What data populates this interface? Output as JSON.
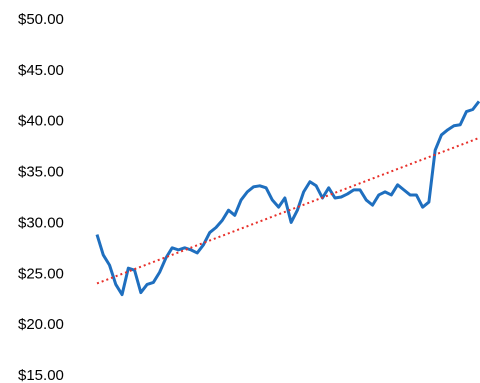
{
  "chart_data": {
    "type": "line",
    "categories": [
      null,
      null,
      null,
      null,
      null,
      null,
      null,
      null,
      null,
      null,
      null,
      null,
      null,
      null,
      null,
      null,
      null,
      null,
      null,
      null,
      null,
      null,
      null,
      null,
      null,
      null,
      null,
      null,
      null,
      null,
      null,
      null,
      null,
      null,
      null,
      null,
      null,
      null,
      null,
      null,
      null,
      null,
      null,
      null,
      null,
      null,
      null,
      null,
      null,
      null,
      null,
      null,
      null,
      null,
      null,
      null,
      null,
      null,
      null,
      null,
      null,
      null
    ],
    "series": [
      {
        "color": "#1f6fbf",
        "values": [
          28.9,
          26.9,
          25.9,
          24.0,
          23.0,
          25.6,
          25.4,
          23.2,
          24.0,
          24.2,
          25.2,
          26.6,
          27.6,
          27.4,
          27.6,
          27.4,
          27.1,
          27.9,
          29.1,
          29.6,
          30.3,
          31.3,
          30.8,
          32.3,
          33.1,
          33.6,
          33.7,
          33.5,
          32.3,
          31.6,
          32.5,
          30.1,
          31.3,
          33.1,
          34.1,
          33.7,
          32.5,
          33.5,
          32.5,
          32.6,
          32.9,
          33.3,
          33.3,
          32.3,
          31.8,
          32.8,
          33.1,
          32.8,
          33.8,
          33.3,
          32.8,
          32.8,
          31.6,
          32.1,
          37.2,
          38.7,
          39.2,
          39.6,
          39.7,
          41.0,
          41.2,
          42.0
        ]
      }
    ],
    "trendline": {
      "color": "#e8302a",
      "values": [
        24.1,
        38.4
      ]
    },
    "ylim": [
      15,
      50
    ],
    "yticks": [
      {
        "value": 15,
        "label": "$15.00"
      },
      {
        "value": 20,
        "label": "$20.00"
      },
      {
        "value": 25,
        "label": "$25.00"
      },
      {
        "value": 30,
        "label": "$30.00"
      },
      {
        "value": 35,
        "label": "$35.00"
      },
      {
        "value": 40,
        "label": "$40.00"
      },
      {
        "value": 45,
        "label": "$45.00"
      },
      {
        "value": 50,
        "label": "$50.00"
      }
    ]
  }
}
